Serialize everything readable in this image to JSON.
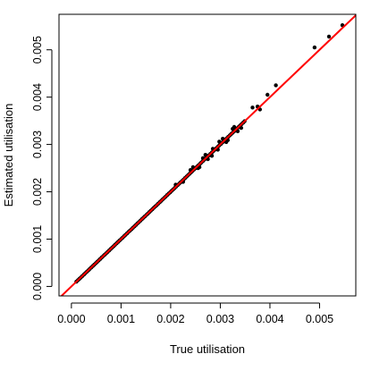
{
  "chart_data": {
    "type": "scatter",
    "title": "",
    "xlabel": "True utilisation",
    "ylabel": "Estimated utilisation",
    "xlim": [
      -0.00025,
      0.00573
    ],
    "ylim": [
      -0.0002,
      0.00575
    ],
    "xticks": [
      0.0,
      0.001,
      0.002,
      0.003,
      0.004,
      0.005
    ],
    "xtick_labels": [
      "0.000",
      "0.001",
      "0.002",
      "0.003",
      "0.004",
      "0.005"
    ],
    "yticks": [
      0.0,
      0.001,
      0.002,
      0.003,
      0.004,
      0.005
    ],
    "ytick_labels": [
      "0.000",
      "0.001",
      "0.002",
      "0.003",
      "0.004",
      "0.005"
    ],
    "grid": false,
    "point_color": "#000000",
    "reference_line": {
      "intercept": 0,
      "slope": 1,
      "color": "#ff0000"
    },
    "points": {
      "x": [
        0.0001,
        0.00013,
        0.00016,
        0.00019,
        0.00022,
        0.00025,
        0.00028,
        0.00031,
        0.00034,
        0.00037,
        0.0004,
        0.00043,
        0.00046,
        0.00049,
        0.00052,
        0.00055,
        0.00058,
        0.00061,
        0.00064,
        0.00067,
        0.0007,
        0.00073,
        0.00076,
        0.00079,
        0.00082,
        0.00085,
        0.00088,
        0.00091,
        0.00094,
        0.00097,
        0.001,
        0.00103,
        0.00106,
        0.00109,
        0.00112,
        0.00115,
        0.00118,
        0.00121,
        0.00124,
        0.00127,
        0.0013,
        0.00133,
        0.00136,
        0.00139,
        0.00142,
        0.00145,
        0.00148,
        0.00151,
        0.00154,
        0.00157,
        0.0016,
        0.00163,
        0.00166,
        0.00169,
        0.00172,
        0.00175,
        0.00178,
        0.00181,
        0.00184,
        0.00187,
        0.0019,
        0.00193,
        0.00196,
        0.00199,
        0.00202,
        0.00205,
        0.00208,
        0.00211,
        0.00214,
        0.00217,
        0.0022,
        0.00223,
        0.00226,
        0.00229,
        0.00232,
        0.00235,
        0.00238,
        0.00241,
        0.00244,
        0.00247,
        0.0025,
        0.00253,
        0.00256,
        0.00259,
        0.00262,
        0.00265,
        0.00268,
        0.00271,
        0.00274,
        0.00277,
        0.0028,
        0.00283,
        0.00286,
        0.00289,
        0.00292,
        0.00295,
        0.00298,
        0.00301,
        0.00304,
        0.00307,
        0.0031,
        0.00313,
        0.00316,
        0.00319,
        0.00322,
        0.00325,
        0.00328,
        0.00331,
        0.00334,
        0.00337,
        0.0034,
        0.00343,
        0.00346,
        0.00349,
        0.0021,
        0.00225,
        0.0024,
        0.00255,
        0.00265,
        0.00275,
        0.00285,
        0.00295,
        0.00305,
        0.00315,
        0.00325,
        0.00335,
        0.00245,
        0.00258,
        0.0027,
        0.00283,
        0.00298,
        0.00312,
        0.00328,
        0.00342,
        0.00365,
        0.00375,
        0.0038,
        0.00395,
        0.00412,
        0.0049,
        0.00519,
        0.00546
      ],
      "y": [
        0.0001,
        0.00013,
        0.00016,
        0.00019,
        0.00022,
        0.00025,
        0.00028,
        0.00031,
        0.00034,
        0.00037,
        0.0004,
        0.00043,
        0.00046,
        0.00049,
        0.00052,
        0.00055,
        0.00058,
        0.00061,
        0.00064,
        0.00067,
        0.0007,
        0.00073,
        0.00076,
        0.00079,
        0.00082,
        0.00085,
        0.00088,
        0.00091,
        0.00094,
        0.00097,
        0.001,
        0.00103,
        0.00106,
        0.00109,
        0.00112,
        0.00115,
        0.00118,
        0.00121,
        0.00124,
        0.00127,
        0.0013,
        0.00133,
        0.00136,
        0.00139,
        0.00142,
        0.00145,
        0.00148,
        0.00151,
        0.00154,
        0.00157,
        0.0016,
        0.00163,
        0.00166,
        0.00169,
        0.00172,
        0.00175,
        0.00178,
        0.00181,
        0.00184,
        0.00187,
        0.0019,
        0.00193,
        0.00196,
        0.00199,
        0.00202,
        0.00205,
        0.00208,
        0.00211,
        0.00214,
        0.00217,
        0.0022,
        0.00223,
        0.00226,
        0.00229,
        0.00232,
        0.00235,
        0.00238,
        0.00241,
        0.00244,
        0.00247,
        0.0025,
        0.00253,
        0.00256,
        0.00259,
        0.00262,
        0.00265,
        0.00268,
        0.00271,
        0.00274,
        0.00277,
        0.0028,
        0.00283,
        0.00286,
        0.00289,
        0.00292,
        0.00295,
        0.00298,
        0.00301,
        0.00304,
        0.00307,
        0.0031,
        0.00313,
        0.00316,
        0.00319,
        0.00322,
        0.00325,
        0.00328,
        0.00331,
        0.00334,
        0.00337,
        0.0034,
        0.00343,
        0.00346,
        0.00349,
        0.00215,
        0.00221,
        0.00246,
        0.0025,
        0.00271,
        0.00269,
        0.00291,
        0.00289,
        0.00312,
        0.00309,
        0.00333,
        0.00328,
        0.00252,
        0.00252,
        0.00278,
        0.00276,
        0.00306,
        0.00305,
        0.00337,
        0.00335,
        0.00378,
        0.0038,
        0.00374,
        0.00405,
        0.00425,
        0.00505,
        0.00528,
        0.00552
      ]
    }
  }
}
